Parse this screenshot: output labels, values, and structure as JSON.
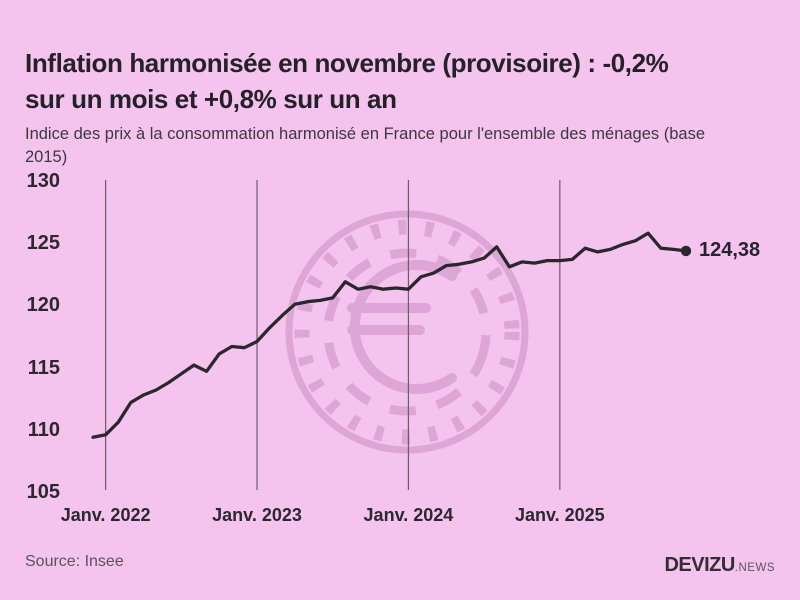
{
  "header": {
    "title_lines": [
      "Inflation harmonisée en novembre (provisoire) : -0,2%",
      "sur un mois et +0,8% sur un an"
    ],
    "subtitle_lines": [
      "Indice des prix à la consommation harmonisé en France pour l'ensemble des ménages (base",
      "2015)"
    ]
  },
  "chart_data": {
    "type": "line",
    "title": "Inflation harmonisée en novembre (provisoire) : -0,2% sur un mois et +0,8% sur un an",
    "subtitle": "Indice des prix à la consommation harmonisé en France pour l'ensemble des ménages (base 2015)",
    "x": [
      "Déc. 2021",
      "Janv. 2022",
      "Févr. 2022",
      "Mars 2022",
      "Avr. 2022",
      "Mai 2022",
      "Juin 2022",
      "Juil. 2022",
      "Août 2022",
      "Sept. 2022",
      "Oct. 2022",
      "Nov. 2022",
      "Déc. 2022",
      "Janv. 2023",
      "Févr. 2023",
      "Mars 2023",
      "Avr. 2023",
      "Mai 2023",
      "Juin 2023",
      "Juil. 2023",
      "Août 2023",
      "Sept. 2023",
      "Oct. 2023",
      "Nov. 2023",
      "Déc. 2023",
      "Janv. 2024",
      "Févr. 2024",
      "Mars 2024",
      "Avr. 2024",
      "Mai 2024",
      "Juin 2024",
      "Juil. 2024",
      "Août 2024",
      "Sept. 2024",
      "Oct. 2024",
      "Nov. 2024",
      "Déc. 2024",
      "Janv. 2025",
      "Févr. 2025",
      "Mars 2025",
      "Avr. 2025",
      "Mai 2025",
      "Juin 2025",
      "Juil. 2025",
      "Août 2025",
      "Sept. 2025",
      "Oct. 2025",
      "Nov. 2025"
    ],
    "values": [
      109.4,
      109.6,
      110.6,
      112.2,
      112.8,
      113.2,
      113.8,
      114.5,
      115.2,
      114.7,
      116.1,
      116.7,
      116.6,
      117.1,
      118.2,
      119.2,
      120.1,
      120.3,
      120.4,
      120.6,
      121.9,
      121.3,
      121.5,
      121.3,
      121.4,
      121.3,
      122.3,
      122.6,
      123.2,
      123.3,
      123.5,
      123.8,
      124.7,
      123.1,
      123.5,
      123.4,
      123.6,
      123.6,
      123.7,
      124.6,
      124.3,
      124.5,
      124.9,
      125.2,
      125.8,
      124.6,
      124.5,
      124.38
    ],
    "ylim": [
      105,
      130
    ],
    "yticks": [
      130,
      125,
      120,
      115,
      110,
      105
    ],
    "xticks": [
      {
        "label": "Janv. 2022",
        "index": 1
      },
      {
        "label": "Janv. 2023",
        "index": 13
      },
      {
        "label": "Janv. 2024",
        "index": 25
      },
      {
        "label": "Janv. 2025",
        "index": 37
      }
    ],
    "end_label": "124,38",
    "grid": "vertical-year-lines-only",
    "legend": "none",
    "colors": {
      "background": "#f4c3ee",
      "line": "#2a272d",
      "grid": "#6d5c6c",
      "text": "#2b2831",
      "muted_text": "#59545e",
      "watermark": "#d9a2d2"
    }
  },
  "footer": {
    "source": "Source: Insee",
    "brand": "DEVIZU",
    "brand_suffix": ".NEWS"
  }
}
